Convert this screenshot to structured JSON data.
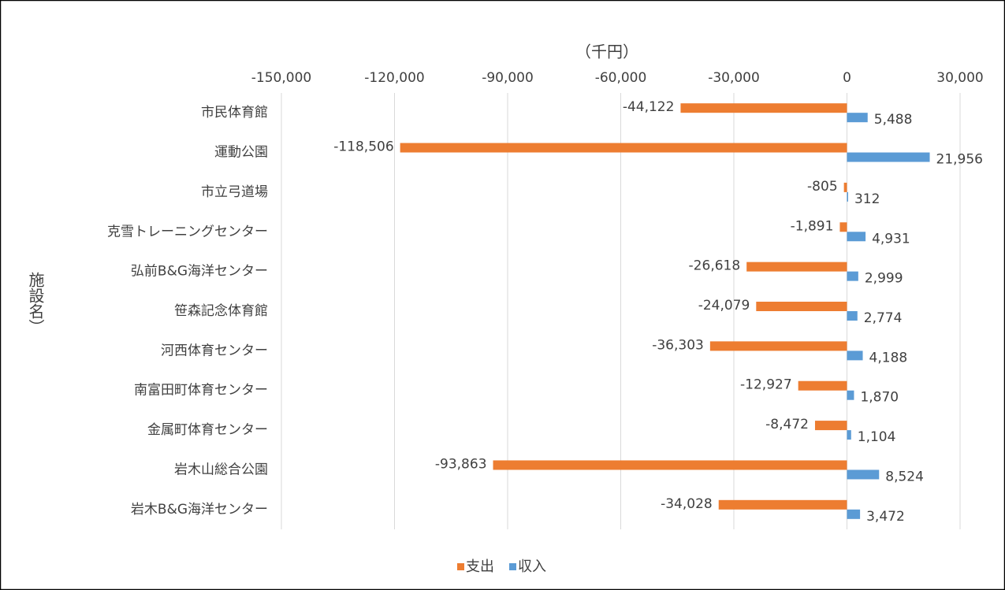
{
  "chart_data": {
    "type": "bar",
    "orientation": "horizontal",
    "x_axis_label": "（千円）",
    "y_axis_label": "施設名）",
    "categories": [
      "市民体育館",
      "運動公園",
      "市立弓道場",
      "克雪トレーニングセンター",
      "弘前B&G海洋センター",
      "笹森記念体育館",
      "河西体育センター",
      "南富田町体育センター",
      "金属町体育センター",
      "岩木山総合公園",
      "岩木B&G海洋センター"
    ],
    "series": [
      {
        "name": "支出",
        "color": "#ed7d31",
        "values": [
          -44122,
          -118506,
          -805,
          -1891,
          -26618,
          -24079,
          -36303,
          -12927,
          -8472,
          -93863,
          -34028
        ],
        "value_labels": [
          "-44,122",
          "-118,506",
          "-805",
          "-1,891",
          "-26,618",
          "-24,079",
          "-36,303",
          "-12,927",
          "-8,472",
          "-93,863",
          "-34,028"
        ]
      },
      {
        "name": "収入",
        "color": "#5b9bd5",
        "values": [
          5488,
          21956,
          312,
          4931,
          2999,
          2774,
          4188,
          1870,
          1104,
          8524,
          3472
        ],
        "value_labels": [
          "5,488",
          "21,956",
          "312",
          "4,931",
          "2,999",
          "2,774",
          "4,188",
          "1,870",
          "1,104",
          "8,524",
          "3,472"
        ]
      }
    ],
    "xlim": [
      -150000,
      30000
    ],
    "xticks": [
      {
        "value": -150000,
        "label": "-150,000"
      },
      {
        "value": -120000,
        "label": "-120,000"
      },
      {
        "value": -90000,
        "label": "-90,000"
      },
      {
        "value": -60000,
        "label": "-60,000"
      },
      {
        "value": -30000,
        "label": "-30,000"
      },
      0,
      {
        "value": 30000,
        "label": "30,000"
      }
    ],
    "grid": true,
    "legend": "bottom"
  }
}
